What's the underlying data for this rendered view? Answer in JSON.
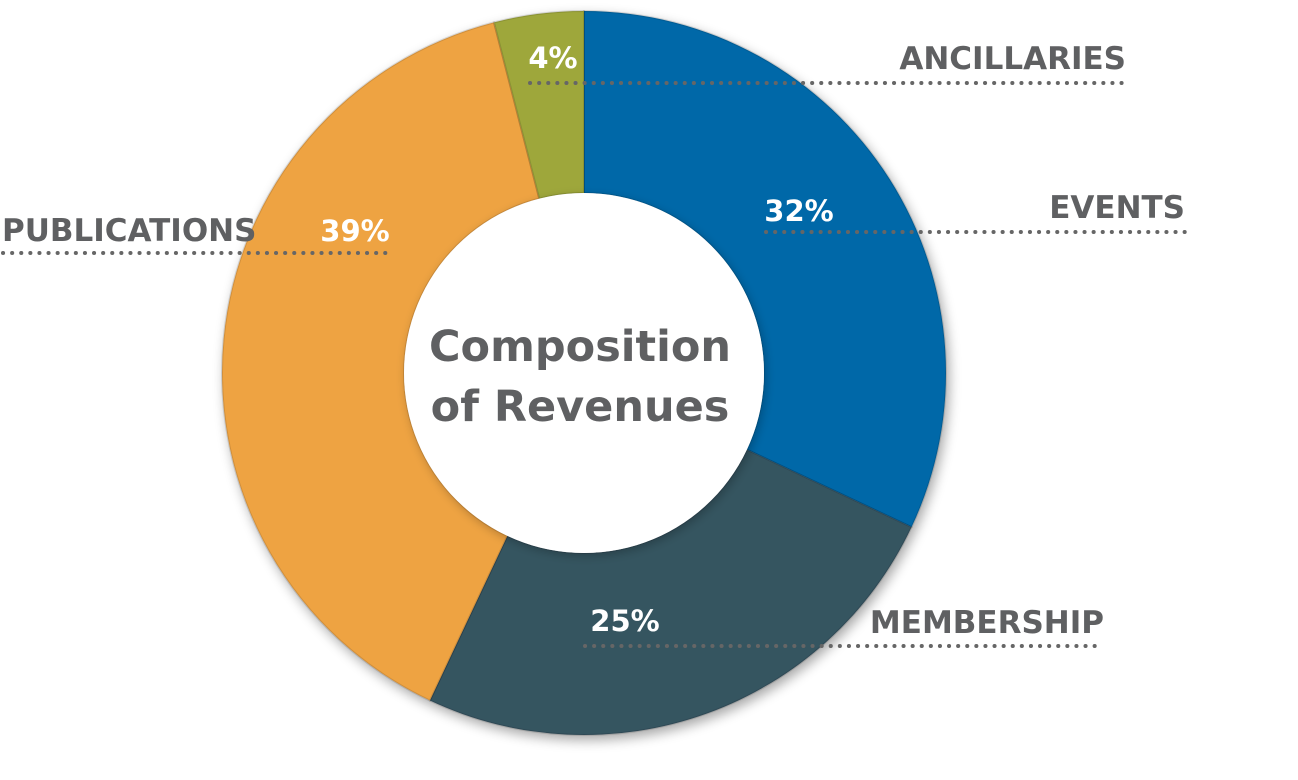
{
  "chart_data": {
    "type": "pie",
    "variant": "donut",
    "title": "Composition of Revenues",
    "title_lines": [
      "Composition",
      "of Revenues"
    ],
    "slices": [
      {
        "key": "events",
        "label": "EVENTS",
        "value": 32,
        "value_label": "32%",
        "color": "#0068a8"
      },
      {
        "key": "membership",
        "label": "MEMBERSHIP",
        "value": 25,
        "value_label": "25%",
        "color": "#365461"
      },
      {
        "key": "publications",
        "label": "PUBLICATIONS",
        "value": 39,
        "value_label": "39%",
        "color": "#eea342"
      },
      {
        "key": "ancillaries",
        "label": "ANCILLARIES",
        "value": 4,
        "value_label": "4%",
        "color": "#9ea73a"
      }
    ],
    "colors": {
      "label_text": "#5f6062",
      "value_text": "#ffffff",
      "leader": "#666666"
    }
  }
}
